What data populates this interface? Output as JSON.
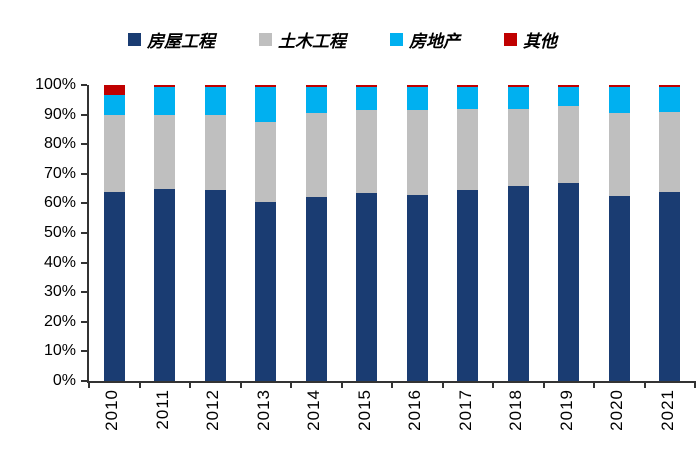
{
  "page": {
    "background": "#ffffff"
  },
  "chart_data": {
    "type": "bar",
    "stacked": true,
    "units": "percent",
    "title": "",
    "legend_position": "top",
    "grid": false,
    "axis_color": "#333333",
    "categories": [
      "2010",
      "2011",
      "2012",
      "2013",
      "2014",
      "2015",
      "2016",
      "2017",
      "2018",
      "2019",
      "2020",
      "2021"
    ],
    "series": [
      {
        "name": "房屋工程",
        "color": "#1A3C72",
        "values": [
          64,
          65,
          64.5,
          60.5,
          62,
          63.5,
          63,
          64.5,
          66,
          67,
          62.5,
          64
        ]
      },
      {
        "name": "土木工程",
        "color": "#BFBFBF",
        "values": [
          26,
          25,
          25.5,
          27,
          28.5,
          28,
          28.5,
          27.5,
          26,
          26,
          28,
          27
        ]
      },
      {
        "name": "房地产",
        "color": "#00B0F0",
        "values": [
          6.5,
          9.5,
          9.5,
          12,
          9,
          8,
          8,
          7.5,
          7.5,
          6.5,
          9,
          8.5
        ]
      },
      {
        "name": "其他",
        "color": "#C00000",
        "values": [
          3.5,
          0.5,
          0.5,
          0.5,
          0.5,
          0.5,
          0.5,
          0.5,
          0.5,
          0.5,
          0.5,
          0.5
        ]
      }
    ],
    "y_axis": {
      "min": 0,
      "max": 100,
      "tick_step": 10,
      "tick_labels": [
        "0%",
        "10%",
        "20%",
        "30%",
        "40%",
        "50%",
        "60%",
        "70%",
        "80%",
        "90%",
        "100%"
      ]
    }
  }
}
